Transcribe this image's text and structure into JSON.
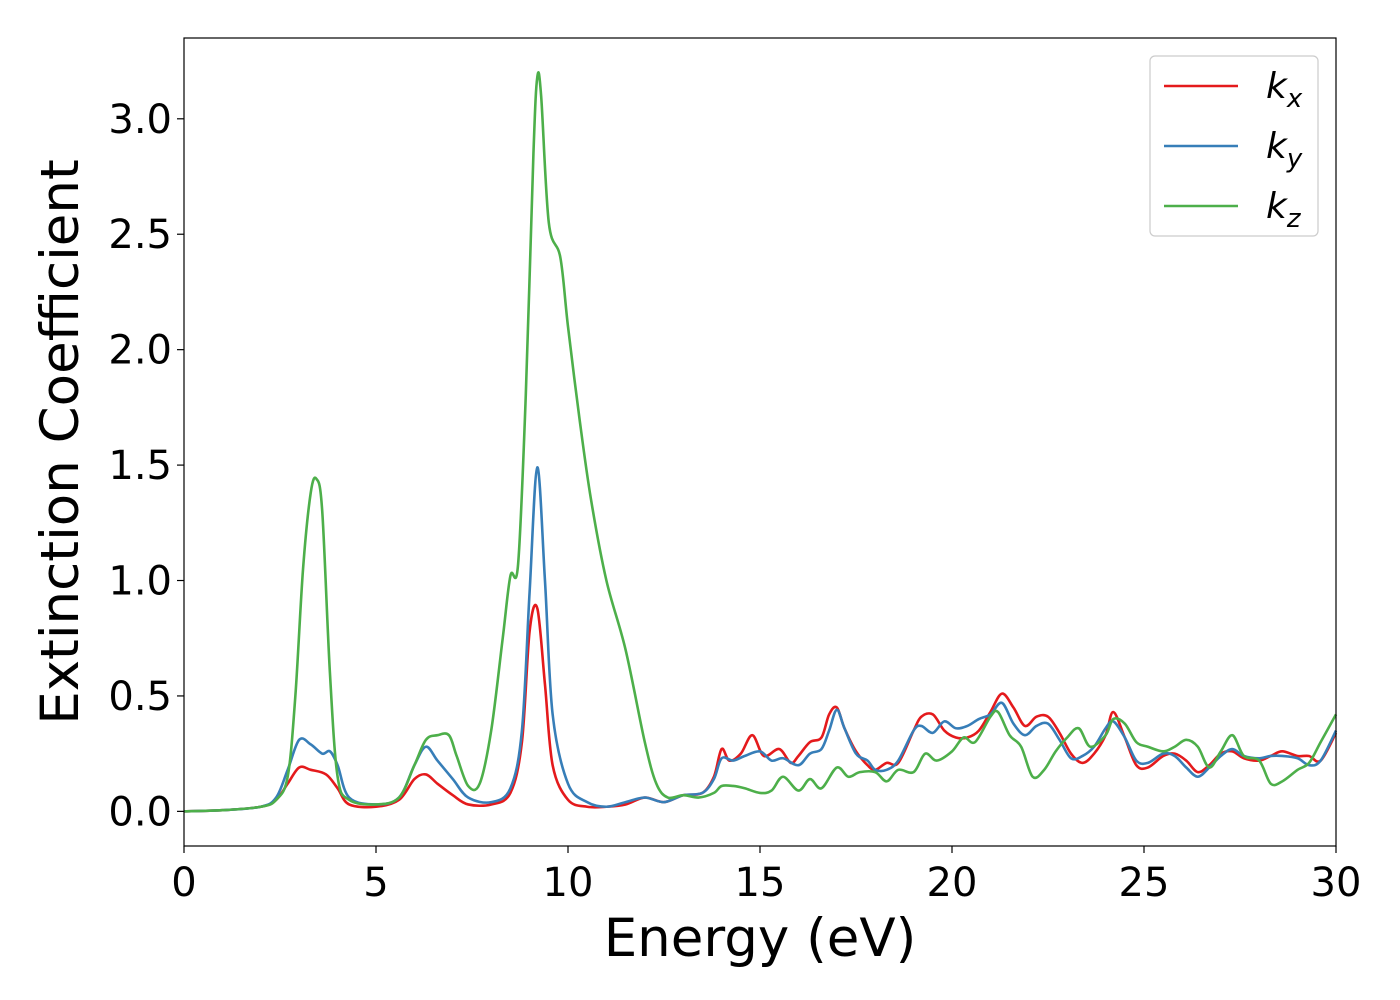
{
  "chart_data": {
    "type": "line",
    "xlabel": "Energy (eV)",
    "ylabel": "Extinction Coefficient",
    "xlim": [
      0,
      30
    ],
    "ylim": [
      -0.15,
      3.35
    ],
    "xticks": [
      0,
      5,
      10,
      15,
      20,
      25,
      30
    ],
    "xtick_labels": [
      "0",
      "5",
      "10",
      "15",
      "20",
      "25",
      "30"
    ],
    "yticks": [
      0.0,
      0.5,
      1.0,
      1.5,
      2.0,
      2.5,
      3.0
    ],
    "ytick_labels": [
      "0.0",
      "0.5",
      "1.0",
      "1.5",
      "2.0",
      "2.5",
      "3.0"
    ],
    "grid": false,
    "legend_position": "top-right",
    "series": [
      {
        "name": "k",
        "subscript": "x",
        "color": "#e41a1c",
        "x": [
          0,
          1,
          2,
          2.4,
          2.7,
          3.0,
          3.3,
          3.7,
          4.0,
          4.3,
          5.0,
          5.6,
          6.0,
          6.3,
          6.6,
          7.0,
          7.4,
          8.0,
          8.5,
          8.8,
          9.0,
          9.2,
          9.4,
          9.6,
          10.0,
          10.5,
          11.0,
          11.5,
          12.0,
          12.5,
          13.0,
          13.5,
          13.8,
          14.0,
          14.2,
          14.5,
          14.8,
          15.1,
          15.5,
          15.8,
          16.0,
          16.3,
          16.6,
          16.8,
          17.0,
          17.2,
          17.5,
          17.8,
          18.0,
          18.3,
          18.6,
          19.0,
          19.2,
          19.5,
          19.8,
          20.1,
          20.4,
          20.7,
          21.0,
          21.3,
          21.6,
          21.9,
          22.2,
          22.5,
          22.8,
          23.1,
          23.4,
          23.7,
          24.0,
          24.2,
          24.5,
          24.8,
          25.1,
          25.5,
          25.8,
          26.1,
          26.4,
          26.7,
          27.0,
          27.3,
          27.6,
          28.0,
          28.3,
          28.6,
          29.0,
          29.3,
          29.6,
          30.0
        ],
        "values": [
          0.0,
          0.005,
          0.02,
          0.05,
          0.12,
          0.19,
          0.18,
          0.16,
          0.1,
          0.03,
          0.02,
          0.05,
          0.14,
          0.16,
          0.12,
          0.07,
          0.03,
          0.03,
          0.08,
          0.3,
          0.78,
          0.88,
          0.55,
          0.2,
          0.05,
          0.02,
          0.02,
          0.03,
          0.06,
          0.04,
          0.07,
          0.08,
          0.15,
          0.27,
          0.22,
          0.25,
          0.33,
          0.24,
          0.27,
          0.21,
          0.24,
          0.3,
          0.32,
          0.42,
          0.45,
          0.36,
          0.26,
          0.2,
          0.18,
          0.21,
          0.21,
          0.35,
          0.41,
          0.42,
          0.35,
          0.32,
          0.32,
          0.35,
          0.43,
          0.51,
          0.45,
          0.37,
          0.41,
          0.41,
          0.34,
          0.25,
          0.21,
          0.25,
          0.33,
          0.43,
          0.32,
          0.2,
          0.19,
          0.24,
          0.25,
          0.22,
          0.17,
          0.2,
          0.25,
          0.26,
          0.23,
          0.22,
          0.24,
          0.26,
          0.24,
          0.24,
          0.22,
          0.34
        ]
      },
      {
        "name": "k",
        "subscript": "y",
        "color": "#377eb8",
        "x": [
          0,
          1,
          2,
          2.4,
          2.7,
          3.0,
          3.3,
          3.6,
          3.8,
          4.0,
          4.3,
          5.0,
          5.6,
          6.0,
          6.3,
          6.6,
          7.0,
          7.4,
          8.0,
          8.5,
          8.8,
          9.0,
          9.2,
          9.4,
          9.6,
          10.0,
          10.5,
          11.0,
          11.5,
          12.0,
          12.5,
          13.0,
          13.5,
          13.8,
          14.0,
          14.3,
          14.6,
          15.0,
          15.3,
          15.6,
          16.0,
          16.3,
          16.6,
          16.8,
          17.0,
          17.2,
          17.5,
          17.8,
          18.0,
          18.3,
          18.6,
          19.0,
          19.2,
          19.5,
          19.8,
          20.1,
          20.4,
          20.7,
          21.0,
          21.3,
          21.6,
          21.9,
          22.2,
          22.5,
          22.8,
          23.1,
          23.4,
          23.7,
          24.0,
          24.2,
          24.5,
          24.8,
          25.1,
          25.5,
          25.8,
          26.1,
          26.4,
          26.7,
          27.0,
          27.3,
          27.6,
          28.0,
          28.3,
          28.6,
          29.0,
          29.3,
          29.6,
          30.0
        ],
        "values": [
          0.0,
          0.005,
          0.02,
          0.06,
          0.18,
          0.31,
          0.29,
          0.25,
          0.26,
          0.2,
          0.06,
          0.03,
          0.06,
          0.2,
          0.28,
          0.22,
          0.14,
          0.06,
          0.04,
          0.1,
          0.35,
          0.95,
          1.49,
          1.0,
          0.42,
          0.12,
          0.04,
          0.02,
          0.04,
          0.06,
          0.04,
          0.07,
          0.08,
          0.14,
          0.23,
          0.22,
          0.24,
          0.26,
          0.22,
          0.23,
          0.2,
          0.25,
          0.27,
          0.35,
          0.44,
          0.36,
          0.25,
          0.22,
          0.18,
          0.18,
          0.22,
          0.35,
          0.37,
          0.34,
          0.39,
          0.36,
          0.37,
          0.4,
          0.42,
          0.47,
          0.38,
          0.33,
          0.37,
          0.38,
          0.31,
          0.23,
          0.24,
          0.28,
          0.36,
          0.39,
          0.32,
          0.22,
          0.21,
          0.25,
          0.24,
          0.19,
          0.15,
          0.19,
          0.24,
          0.27,
          0.24,
          0.23,
          0.24,
          0.24,
          0.23,
          0.2,
          0.22,
          0.35
        ]
      },
      {
        "name": "k",
        "subscript": "z",
        "color": "#4daf4a",
        "x": [
          0,
          1,
          2,
          2.4,
          2.7,
          2.9,
          3.1,
          3.3,
          3.45,
          3.6,
          3.8,
          4.0,
          4.3,
          5.0,
          5.6,
          6.0,
          6.3,
          6.6,
          6.9,
          7.1,
          7.4,
          7.7,
          8.0,
          8.3,
          8.5,
          8.7,
          8.9,
          9.1,
          9.2,
          9.3,
          9.5,
          9.8,
          10.0,
          10.3,
          10.6,
          11.0,
          11.5,
          12.0,
          12.3,
          12.6,
          13.0,
          13.4,
          13.8,
          14.0,
          14.3,
          14.6,
          15.0,
          15.3,
          15.6,
          16.0,
          16.3,
          16.6,
          17.0,
          17.3,
          17.6,
          18.0,
          18.3,
          18.6,
          19.0,
          19.3,
          19.6,
          20.0,
          20.3,
          20.6,
          21.0,
          21.2,
          21.5,
          21.8,
          22.1,
          22.4,
          22.7,
          23.0,
          23.3,
          23.6,
          24.0,
          24.2,
          24.5,
          24.8,
          25.1,
          25.5,
          25.8,
          26.1,
          26.4,
          26.7,
          27.0,
          27.3,
          27.6,
          28.0,
          28.3,
          28.6,
          29.0,
          29.3,
          29.6,
          30.0
        ],
        "values": [
          0.0,
          0.005,
          0.02,
          0.05,
          0.15,
          0.5,
          1.05,
          1.38,
          1.44,
          1.3,
          0.6,
          0.15,
          0.05,
          0.03,
          0.06,
          0.2,
          0.31,
          0.33,
          0.33,
          0.24,
          0.11,
          0.12,
          0.35,
          0.75,
          1.02,
          1.07,
          1.8,
          2.85,
          3.18,
          3.1,
          2.55,
          2.4,
          2.1,
          1.7,
          1.35,
          1.0,
          0.7,
          0.3,
          0.12,
          0.06,
          0.07,
          0.06,
          0.08,
          0.11,
          0.11,
          0.1,
          0.08,
          0.09,
          0.15,
          0.09,
          0.14,
          0.1,
          0.19,
          0.15,
          0.17,
          0.17,
          0.13,
          0.18,
          0.17,
          0.25,
          0.22,
          0.26,
          0.32,
          0.3,
          0.41,
          0.43,
          0.33,
          0.28,
          0.15,
          0.18,
          0.26,
          0.32,
          0.36,
          0.28,
          0.33,
          0.4,
          0.38,
          0.3,
          0.28,
          0.26,
          0.28,
          0.31,
          0.28,
          0.19,
          0.26,
          0.33,
          0.24,
          0.22,
          0.12,
          0.13,
          0.18,
          0.21,
          0.3,
          0.42
        ]
      }
    ]
  }
}
